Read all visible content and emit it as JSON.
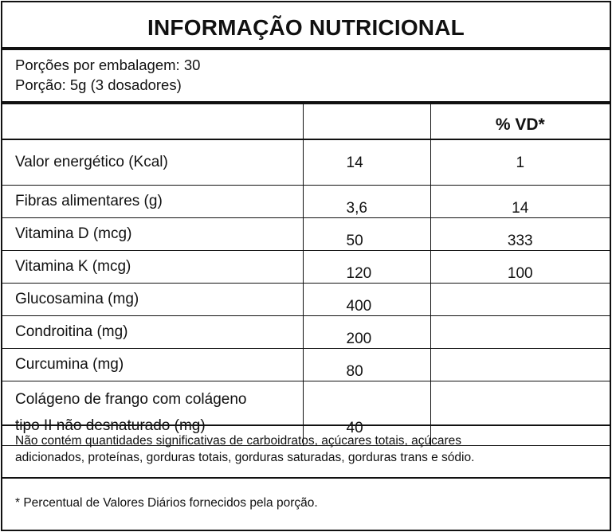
{
  "title": "INFORMAÇÃO NUTRICIONAL",
  "portions": {
    "per_package": "Porções por embalagem: 30",
    "serving": "Porção: 5g (3 dosadores)"
  },
  "table": {
    "headers": [
      "",
      "",
      "% VD*"
    ],
    "rows": [
      {
        "name": "Valor energético (Kcal)",
        "amount": "14",
        "vd": "1"
      },
      {
        "name": "Fibras alimentares (g)",
        "amount": "3,6",
        "vd": "14"
      },
      {
        "name": "Vitamina D (mcg)",
        "amount": "50",
        "vd": "333"
      },
      {
        "name": "Vitamina K (mcg)",
        "amount": "120",
        "vd": "100"
      },
      {
        "name": "Glucosamina (mg)",
        "amount": "400",
        "vd": ""
      },
      {
        "name": "Condroitina (mg)",
        "amount": "200",
        "vd": ""
      },
      {
        "name": "Curcumina (mg)",
        "amount": "80",
        "vd": ""
      },
      {
        "name_line1": "Colágeno de frango com colágeno",
        "name_line2": "tipo II não desnaturado (mg)",
        "amount": "40",
        "vd": ""
      }
    ]
  },
  "notes": {
    "not_significant_line1": "Não contém quantidades significativas de carboidratos, açúcares totais, açúcares",
    "not_significant_line2": "adicionados, proteínas, gorduras totais, gorduras saturadas, gorduras trans e sódio.",
    "footnote": "* Percentual de Valores Diários fornecidos pela porção."
  }
}
